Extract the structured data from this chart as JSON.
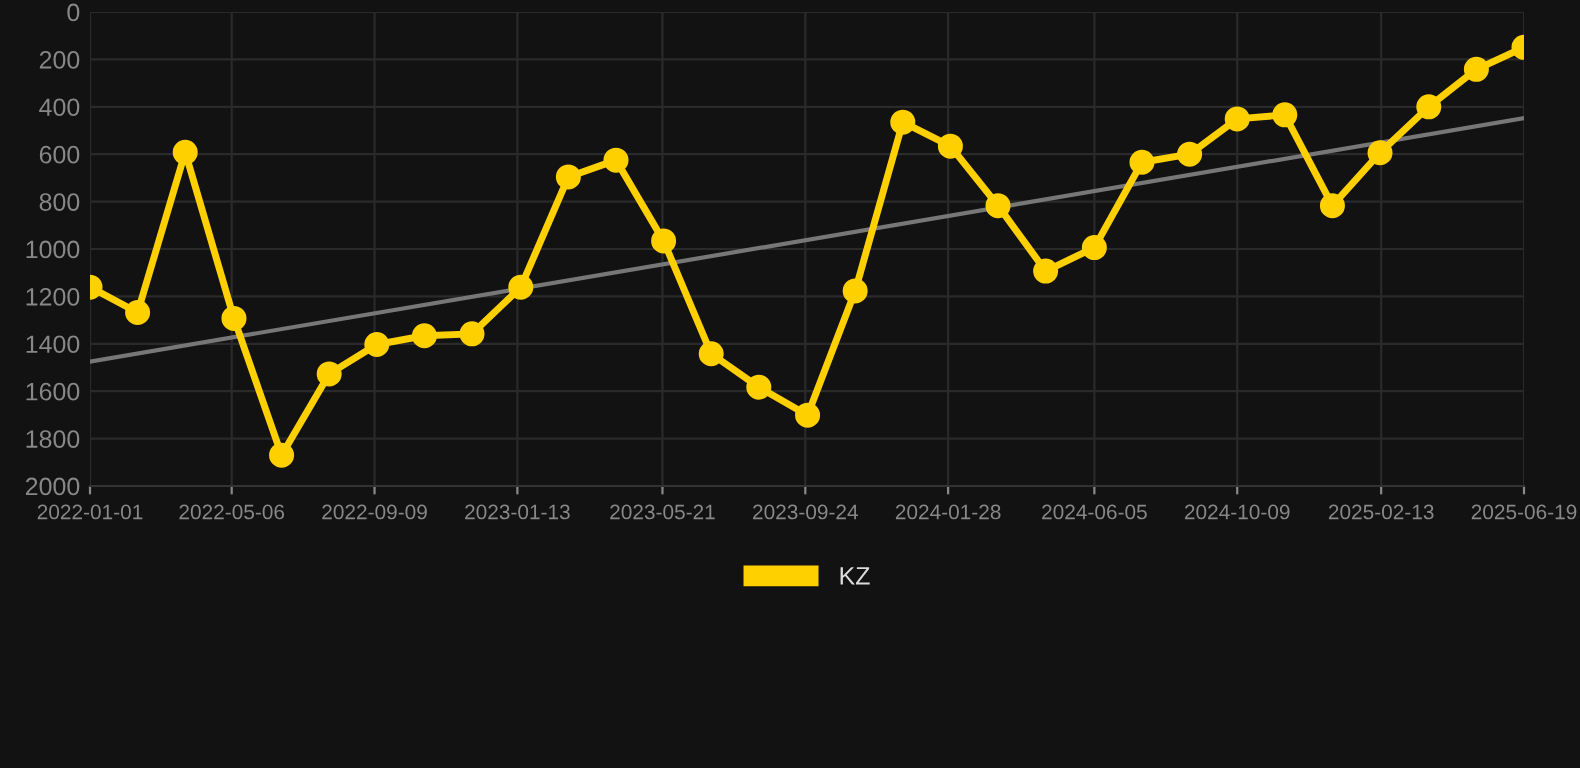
{
  "chart_data": {
    "type": "line",
    "x": [
      "2022-01-01",
      "2022-02-12",
      "2022-03-26",
      "2022-05-08",
      "2022-06-19",
      "2022-07-31",
      "2022-09-11",
      "2022-10-23",
      "2022-12-04",
      "2023-01-16",
      "2023-02-27",
      "2023-04-10",
      "2023-05-22",
      "2023-07-03",
      "2023-08-14",
      "2023-09-26",
      "2023-11-07",
      "2023-12-19",
      "2024-01-30",
      "2024-03-12",
      "2024-04-23",
      "2024-06-05",
      "2024-07-17",
      "2024-08-28",
      "2024-10-09",
      "2024-11-20",
      "2025-01-01",
      "2025-02-12",
      "2025-03-27",
      "2025-05-08",
      "2025-06-19"
    ],
    "series": [
      {
        "name": "KZ",
        "color": "#ffd000",
        "marker": "circle",
        "values": [
          1161,
          1268,
          592,
          1293,
          1870,
          1527,
          1403,
          1366,
          1358,
          1161,
          696,
          625,
          966,
          1442,
          1583,
          1701,
          1177,
          465,
          566,
          817,
          1093,
          994,
          634,
          600,
          451,
          434,
          817,
          594,
          400,
          242,
          149
        ]
      },
      {
        "color": "#777777",
        "marker": "none",
        "x": [
          "2022-01-01",
          "2025-06-19"
        ],
        "values": [
          1475,
          448
        ]
      }
    ],
    "ylim": [
      2000,
      0
    ],
    "yticks": [
      0,
      200,
      400,
      600,
      800,
      1000,
      1200,
      1400,
      1600,
      1800,
      2000
    ],
    "xlim": [
      "2022-01-01",
      "2025-06-19"
    ],
    "xticks": [
      "2022-01-01",
      "2022-05-06",
      "2022-09-09",
      "2023-01-13",
      "2023-05-21",
      "2023-09-24",
      "2024-01-28",
      "2024-06-05",
      "2024-10-09",
      "2025-02-13",
      "2025-06-19"
    ],
    "grid": true,
    "legend": "bottom",
    "line_style": "solid"
  }
}
